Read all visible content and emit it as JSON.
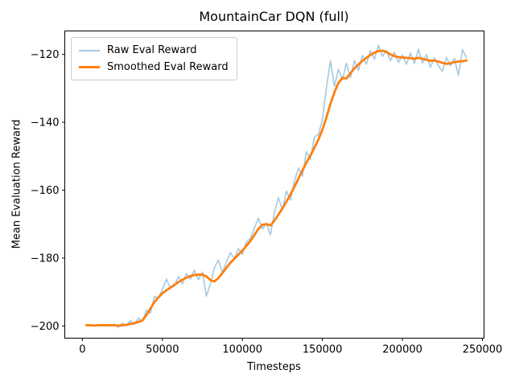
{
  "figure": {
    "background": "#ffffff",
    "spine_color": "#000000"
  },
  "chart_data": {
    "type": "line",
    "title": "MountainCar DQN (full)",
    "xlabel": "Timesteps",
    "ylabel": "Mean Evaluation Reward",
    "grid": false,
    "legend_position": "upper left",
    "xlim": [
      -11000,
      251000
    ],
    "ylim": [
      -203.6,
      -113.1
    ],
    "x_ticks": {
      "values": [
        0,
        50000,
        100000,
        150000,
        200000,
        250000
      ],
      "labels": [
        "0",
        "50000",
        "100000",
        "150000",
        "200000",
        "250000"
      ]
    },
    "y_ticks": {
      "values": [
        -120,
        -140,
        -160,
        -180,
        -200
      ],
      "labels": [
        "−120",
        "−140",
        "−160",
        "−180",
        "−200"
      ]
    },
    "x": [
      2500,
      5000,
      7500,
      10000,
      12500,
      15000,
      17500,
      20000,
      22500,
      25000,
      27500,
      30000,
      32500,
      35000,
      37500,
      40000,
      42500,
      45000,
      47500,
      50000,
      52500,
      55000,
      57500,
      60000,
      62500,
      65000,
      67500,
      70000,
      72500,
      75000,
      77500,
      80000,
      82500,
      85000,
      87500,
      90000,
      92500,
      95000,
      97500,
      100000,
      102500,
      105000,
      107500,
      110000,
      112500,
      115000,
      117500,
      120000,
      122500,
      125000,
      127500,
      130000,
      132500,
      135000,
      137500,
      140000,
      142500,
      145000,
      147500,
      150000,
      152500,
      155000,
      157500,
      160000,
      162500,
      165000,
      167500,
      170000,
      172500,
      175000,
      177500,
      180000,
      182500,
      185000,
      187500,
      190000,
      192500,
      195000,
      197500,
      200000,
      202500,
      205000,
      207500,
      210000,
      212500,
      215000,
      217500,
      220000,
      222500,
      225000,
      227500,
      230000,
      232500,
      235000,
      237500,
      240000
    ],
    "series": [
      {
        "name": "Raw Eval Reward",
        "color": "#a5c9e1",
        "width": 1.6,
        "values": [
          -199.9,
          -199.6,
          -200.0,
          -199.7,
          -199.9,
          -199.8,
          -199.9,
          -199.5,
          -200.4,
          -199.2,
          -199.9,
          -198.4,
          -199.6,
          -197.7,
          -198.6,
          -195.4,
          -196.3,
          -191.3,
          -191.8,
          -189.3,
          -186.2,
          -188.9,
          -188.3,
          -185.4,
          -187.6,
          -184.6,
          -186.2,
          -183.6,
          -186.4,
          -184.1,
          -191.2,
          -187.6,
          -182.9,
          -180.6,
          -184.3,
          -181.2,
          -178.4,
          -180.2,
          -177.2,
          -178.9,
          -175.3,
          -174.2,
          -171.1,
          -168.3,
          -171.4,
          -169.9,
          -173.2,
          -166.6,
          -162.2,
          -165.8,
          -160.3,
          -162.9,
          -157.3,
          -153.5,
          -155.9,
          -148.7,
          -150.9,
          -144.3,
          -143.6,
          -139.2,
          -129.8,
          -121.9,
          -129.4,
          -124.4,
          -127.4,
          -122.6,
          -126.9,
          -121.8,
          -124.7,
          -120.3,
          -122.9,
          -118.9,
          -121.4,
          -117.3,
          -120.6,
          -118.8,
          -121.9,
          -119.4,
          -122.4,
          -120.2,
          -122.9,
          -119.6,
          -122.7,
          -118.4,
          -122.6,
          -120.1,
          -123.8,
          -121.0,
          -123.4,
          -125.0,
          -120.9,
          -123.3,
          -121.2,
          -126.2,
          -118.6,
          -120.9
        ]
      },
      {
        "name": "Smoothed Eval Reward",
        "color": "#ff7f0e",
        "width": 2.8,
        "values": [
          -199.8,
          -199.8,
          -199.9,
          -199.8,
          -199.8,
          -199.8,
          -199.8,
          -199.8,
          -199.9,
          -199.8,
          -199.7,
          -199.4,
          -199.2,
          -198.8,
          -198.4,
          -196.8,
          -194.9,
          -193.0,
          -191.6,
          -190.4,
          -189.5,
          -188.7,
          -187.9,
          -187.1,
          -186.4,
          -185.8,
          -185.3,
          -185.0,
          -184.9,
          -184.9,
          -185.4,
          -186.5,
          -186.9,
          -185.9,
          -184.4,
          -182.9,
          -181.4,
          -180.2,
          -179.0,
          -177.8,
          -176.4,
          -175.0,
          -173.2,
          -171.4,
          -170.2,
          -170.0,
          -170.4,
          -169.0,
          -167.2,
          -165.4,
          -163.4,
          -161.3,
          -159.0,
          -156.6,
          -154.2,
          -151.9,
          -149.8,
          -147.5,
          -145.1,
          -142.2,
          -138.6,
          -134.6,
          -131.2,
          -128.4,
          -126.9,
          -127.1,
          -125.6,
          -124.1,
          -123.0,
          -121.9,
          -121.0,
          -120.2,
          -119.5,
          -119.0,
          -118.9,
          -119.3,
          -120.0,
          -120.5,
          -120.8,
          -120.9,
          -121.0,
          -121.1,
          -121.3,
          -121.0,
          -121.3,
          -121.6,
          -121.9,
          -121.8,
          -122.1,
          -122.5,
          -122.8,
          -122.6,
          -122.3,
          -122.1,
          -122.0,
          -121.8
        ]
      }
    ]
  }
}
